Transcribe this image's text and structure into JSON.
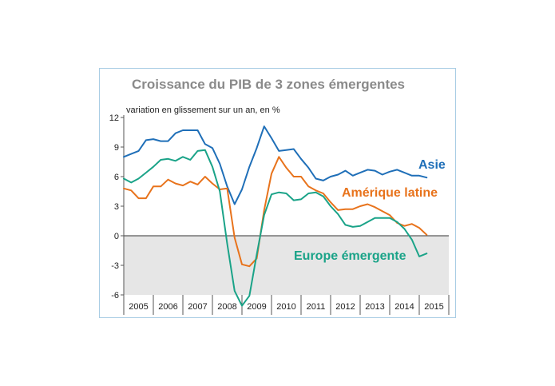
{
  "chart_data": {
    "type": "line",
    "title": "Croissance du PIB de 3 zones émergentes",
    "subtitle": "variation en glissement sur un an, en %",
    "xlabel": "",
    "ylabel": "",
    "ylim": [
      -6,
      12
    ],
    "yticks": [
      "12",
      "9",
      "6",
      "3",
      "0",
      "-3",
      "-6"
    ],
    "ytick_values": [
      12,
      9,
      6,
      3,
      0,
      -3,
      -6
    ],
    "years": [
      "2005",
      "2006",
      "2007",
      "2008",
      "2009",
      "2010",
      "2011",
      "2012",
      "2013",
      "2014",
      "2015"
    ],
    "x_start": 2005.0,
    "x_end": 2016.0,
    "negative_region_shaded": true,
    "series": [
      {
        "name": "Asie",
        "color": "#1f6fb8",
        "label_color": "#1f6fb8",
        "x": [
          2005.0,
          2005.25,
          2005.5,
          2005.75,
          2006.0,
          2006.25,
          2006.5,
          2006.75,
          2007.0,
          2007.25,
          2007.5,
          2007.75,
          2008.0,
          2008.25,
          2008.5,
          2008.75,
          2009.0,
          2009.25,
          2009.5,
          2009.75,
          2010.0,
          2010.25,
          2010.5,
          2010.75,
          2011.0,
          2011.25,
          2011.5,
          2011.75,
          2012.0,
          2012.25,
          2012.5,
          2012.75,
          2013.0,
          2013.25,
          2013.5,
          2013.75,
          2014.0,
          2014.25,
          2014.5,
          2014.75,
          2015.0,
          2015.25
        ],
        "values": [
          8.0,
          8.3,
          8.6,
          9.7,
          9.8,
          9.6,
          9.6,
          10.4,
          10.7,
          10.7,
          10.7,
          9.3,
          8.9,
          7.3,
          5.0,
          3.2,
          4.7,
          7.0,
          8.9,
          11.1,
          9.9,
          8.6,
          8.7,
          8.8,
          7.8,
          6.9,
          5.8,
          5.6,
          6.0,
          6.2,
          6.6,
          6.1,
          6.4,
          6.7,
          6.6,
          6.2,
          6.5,
          6.7,
          6.4,
          6.1,
          6.1,
          5.9
        ]
      },
      {
        "name": "Amérique latine",
        "color": "#e8731c",
        "label_color": "#e8731c",
        "x": [
          2005.0,
          2005.25,
          2005.5,
          2005.75,
          2006.0,
          2006.25,
          2006.5,
          2006.75,
          2007.0,
          2007.25,
          2007.5,
          2007.75,
          2008.0,
          2008.25,
          2008.5,
          2008.75,
          2009.0,
          2009.25,
          2009.5,
          2009.75,
          2010.0,
          2010.25,
          2010.5,
          2010.75,
          2011.0,
          2011.25,
          2011.5,
          2011.75,
          2012.0,
          2012.25,
          2012.5,
          2012.75,
          2013.0,
          2013.25,
          2013.5,
          2013.75,
          2014.0,
          2014.25,
          2014.5,
          2014.75,
          2015.0,
          2015.25
        ],
        "values": [
          4.8,
          4.6,
          3.8,
          3.8,
          5.0,
          5.0,
          5.7,
          5.3,
          5.1,
          5.5,
          5.2,
          6.0,
          5.3,
          4.7,
          4.8,
          -0.2,
          -2.9,
          -3.1,
          -2.3,
          2.6,
          6.3,
          8.0,
          6.9,
          6.0,
          6.0,
          5.0,
          4.6,
          4.3,
          3.4,
          2.6,
          2.7,
          2.7,
          3.0,
          3.2,
          2.9,
          2.5,
          2.1,
          1.3,
          1.0,
          1.2,
          0.8,
          0.1
        ]
      },
      {
        "name": "Europe émergente",
        "color": "#1aa388",
        "label_color": "#1aa388",
        "x": [
          2005.0,
          2005.25,
          2005.5,
          2005.75,
          2006.0,
          2006.25,
          2006.5,
          2006.75,
          2007.0,
          2007.25,
          2007.5,
          2007.75,
          2008.0,
          2008.25,
          2008.5,
          2008.75,
          2009.0,
          2009.25,
          2009.5,
          2009.75,
          2010.0,
          2010.25,
          2010.5,
          2010.75,
          2011.0,
          2011.25,
          2011.5,
          2011.75,
          2012.0,
          2012.25,
          2012.5,
          2012.75,
          2013.0,
          2013.25,
          2013.5,
          2013.75,
          2014.0,
          2014.25,
          2014.5,
          2014.75,
          2015.0,
          2015.25
        ],
        "values": [
          5.8,
          5.4,
          5.8,
          6.4,
          7.0,
          7.7,
          7.8,
          7.6,
          8.0,
          7.7,
          8.6,
          8.7,
          7.0,
          4.5,
          -0.8,
          -5.6,
          -7.1,
          -6.1,
          -1.9,
          2.1,
          4.2,
          4.4,
          4.3,
          3.6,
          3.7,
          4.3,
          4.4,
          4.0,
          3.0,
          2.2,
          1.1,
          0.9,
          1.0,
          1.4,
          1.8,
          1.8,
          1.8,
          1.4,
          0.7,
          -0.4,
          -2.1,
          -1.8
        ]
      }
    ]
  }
}
